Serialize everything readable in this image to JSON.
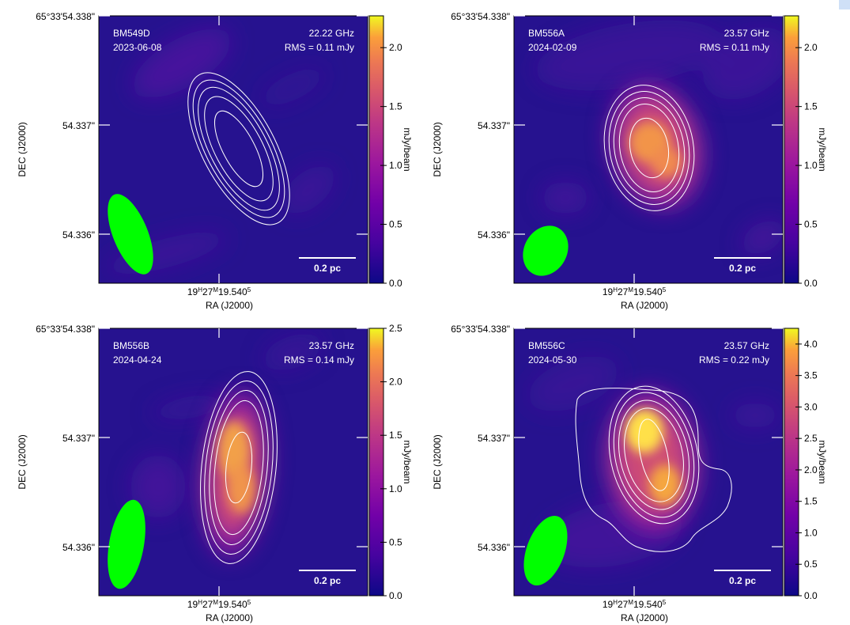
{
  "figure": {
    "panels": [
      {
        "id": "BM549D",
        "date": "2023-06-08",
        "freq": "22.22 GHz",
        "rms": "RMS = 0.11 mJy",
        "scalebar": "0.2 pc",
        "cbar_label": "mJy/beam",
        "cbar_ticks": [
          "0.0",
          "0.5",
          "1.0",
          "1.5",
          "2.0"
        ],
        "cbar_max": 2.27,
        "ra_tick": "19H27M19.5405",
        "dec_ticks": [
          "65°33'54.338\"",
          "54.337\"",
          "54.336\""
        ],
        "xlabel": "RA (J2000)",
        "ylabel": "DEC (J2000)",
        "colors": {
          "bg": "#26128f",
          "beam": "#00ff00",
          "contour": "#ffffff"
        }
      },
      {
        "id": "BM556A",
        "date": "2024-02-09",
        "freq": "23.57 GHz",
        "rms": "RMS = 0.11 mJy",
        "scalebar": "0.2 pc",
        "cbar_label": "mJy/beam",
        "cbar_ticks": [
          "0.0",
          "0.5",
          "1.0",
          "1.5",
          "2.0"
        ],
        "cbar_max": 2.27,
        "ra_tick": "19H27M19.5405",
        "dec_ticks": [
          "65°33'54.338\"",
          "54.337\"",
          "54.336\""
        ],
        "xlabel": "RA (J2000)",
        "ylabel": "DEC (J2000)",
        "colors": {
          "bg": "#26128f",
          "beam": "#00ff00",
          "contour": "#ffffff"
        }
      },
      {
        "id": "BM556B",
        "date": "2024-04-24",
        "freq": "23.57 GHz",
        "rms": "RMS = 0.14 mJy",
        "scalebar": "0.2 pc",
        "cbar_label": "mJy/beam",
        "cbar_ticks": [
          "0.0",
          "0.5",
          "1.0",
          "1.5",
          "2.0",
          "2.5"
        ],
        "cbar_max": 2.5,
        "ra_tick": "19H27M19.5405",
        "dec_ticks": [
          "65°33'54.338\"",
          "54.337\"",
          "54.336\""
        ],
        "xlabel": "RA (J2000)",
        "ylabel": "DEC (J2000)",
        "colors": {
          "bg": "#26128f",
          "beam": "#00ff00",
          "contour": "#ffffff"
        }
      },
      {
        "id": "BM556C",
        "date": "2024-05-30",
        "freq": "23.57 GHz",
        "rms": "RMS = 0.22 mJy",
        "scalebar": "0.2 pc",
        "cbar_label": "mJy/beam",
        "cbar_ticks": [
          "0.0",
          "0.5",
          "1.0",
          "1.5",
          "2.0",
          "2.5",
          "3.0",
          "3.5",
          "4.0"
        ],
        "cbar_max": 4.25,
        "ra_tick": "19H27M19.5405",
        "dec_ticks": [
          "65°33'54.338\"",
          "54.337\"",
          "54.336\""
        ],
        "xlabel": "RA (J2000)",
        "ylabel": "DEC (J2000)",
        "colors": {
          "bg": "#26128f",
          "beam": "#00ff00",
          "contour": "#ffffff"
        }
      }
    ]
  },
  "chart_data": [
    {
      "type": "heatmap",
      "title": "BM549D",
      "subtitle": "2023-06-08",
      "annotations": [
        "22.22 GHz",
        "RMS = 0.11 mJy",
        "0.2 pc"
      ],
      "xlabel": "RA (J2000)",
      "ylabel": "DEC (J2000)",
      "x_ticks": [
        "19H27M19.5405"
      ],
      "y_ticks": [
        "65°33'54.338\"",
        "54.337\"",
        "54.336\""
      ],
      "colorbar_label": "mJy/beam",
      "colorbar_range": [
        0.0,
        2.27
      ],
      "colorbar_ticks": [
        0.0,
        0.5,
        1.0,
        1.5,
        2.0
      ],
      "colormap": "plasma",
      "peak_emission_mJy_per_beam": 0.0,
      "contours": "white, elongated NW–SE"
    },
    {
      "type": "heatmap",
      "title": "BM556A",
      "subtitle": "2024-02-09",
      "annotations": [
        "23.57 GHz",
        "RMS = 0.11 mJy",
        "0.2 pc"
      ],
      "xlabel": "RA (J2000)",
      "ylabel": "DEC (J2000)",
      "x_ticks": [
        "19H27M19.5405"
      ],
      "y_ticks": [
        "65°33'54.338\"",
        "54.337\"",
        "54.336\""
      ],
      "colorbar_label": "mJy/beam",
      "colorbar_range": [
        0.0,
        2.27
      ],
      "colorbar_ticks": [
        0.0,
        0.5,
        1.0,
        1.5,
        2.0
      ],
      "colormap": "plasma",
      "peak_emission_mJy_per_beam": 1.9,
      "contours": "white, compact"
    },
    {
      "type": "heatmap",
      "title": "BM556B",
      "subtitle": "2024-04-24",
      "annotations": [
        "23.57 GHz",
        "RMS = 0.14 mJy",
        "0.2 pc"
      ],
      "xlabel": "RA (J2000)",
      "ylabel": "DEC (J2000)",
      "x_ticks": [
        "19H27M19.5405"
      ],
      "y_ticks": [
        "65°33'54.338\"",
        "54.337\"",
        "54.336\""
      ],
      "colorbar_label": "mJy/beam",
      "colorbar_range": [
        0.0,
        2.5
      ],
      "colorbar_ticks": [
        0.0,
        0.5,
        1.0,
        1.5,
        2.0,
        2.5
      ],
      "colormap": "plasma",
      "peak_emission_mJy_per_beam": 1.9,
      "contours": "white, elongated N–S"
    },
    {
      "type": "heatmap",
      "title": "BM556C",
      "subtitle": "2024-05-30",
      "annotations": [
        "23.57 GHz",
        "RMS = 0.22 mJy",
        "0.2 pc"
      ],
      "xlabel": "RA (J2000)",
      "ylabel": "DEC (J2000)",
      "x_ticks": [
        "19H27M19.5405"
      ],
      "y_ticks": [
        "65°33'54.338\"",
        "54.337\"",
        "54.336\""
      ],
      "colorbar_label": "mJy/beam",
      "colorbar_range": [
        0.0,
        4.25
      ],
      "colorbar_ticks": [
        0.0,
        0.5,
        1.0,
        1.5,
        2.0,
        2.5,
        3.0,
        3.5,
        4.0
      ],
      "colormap": "plasma",
      "peak_emission_mJy_per_beam": 4.0,
      "contours": "white, extended with outer low-level contour"
    }
  ]
}
